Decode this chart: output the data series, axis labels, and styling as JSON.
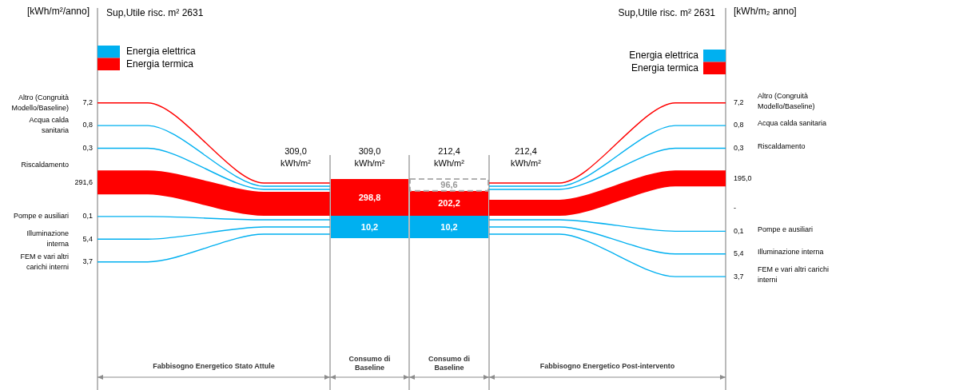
{
  "chart_data": [
    {
      "type": "other",
      "title": "Sup,Utile risc. m² 2631",
      "ylabel": "[kWh/m²/anno]",
      "xlabel": "Fabbisogno Energetico Stato Attule",
      "legend": "top left",
      "annotations": [
        "309,0 kWh/m²"
      ],
      "categories": [
        "Altro (Congruità Modello/Baseline)",
        "Acqua calda sanitaria",
        "Riscaldamento",
        "Pompe e ausiliari",
        "Illuminazione interna",
        "FEM e vari altri carichi interni"
      ],
      "series": [
        {
          "name": "Energia elettrica",
          "color": "#00b0f0",
          "values": [
            null,
            0.8,
            0.3,
            0.1,
            5.4,
            3.7
          ],
          "value_labels": [
            null,
            "0,8",
            "0,3",
            "0,1",
            "5,4",
            "3,7"
          ]
        },
        {
          "name": "Energia termica",
          "color": "#ff0000",
          "values": [
            7.2,
            null,
            291.6,
            null,
            null,
            null
          ],
          "value_labels": [
            "7,2",
            null,
            "291,6",
            null,
            null,
            null
          ]
        }
      ]
    },
    {
      "type": "other",
      "categories": [
        "Consumo di Baseline",
        "Consumo di Baseline"
      ],
      "totals": [
        "309,0 kWh/m²",
        "212,4 kWh/m²"
      ],
      "series": [
        {
          "color": "#00b0f0",
          "values": [
            10.2,
            10.2
          ],
          "value_labels": [
            "10,2",
            "10,2"
          ]
        },
        {
          "color": "#ff0000",
          "values": [
            298.8,
            202.2
          ],
          "value_labels": [
            "298,8",
            "202,2"
          ]
        },
        {
          "color": "#ffffff",
          "line_style": "dashed",
          "values": [
            null,
            96.6
          ],
          "value_labels": [
            null,
            "96,6"
          ]
        }
      ]
    },
    {
      "type": "other",
      "title": "Sup,Utile risc. m² 2631",
      "ylabel": "[kWh/m₂ anno]",
      "xlabel": "Fabbisogno Energetico Post-intervento",
      "legend": "top right",
      "annotations": [
        "212,4 kWh/m²"
      ],
      "categories": [
        "Altro (Congruità Modello/Baseline)",
        "Acqua calda sanitaria",
        "Riscaldamento",
        null,
        "Pompe e ausiliari",
        "Illuminazione interna",
        "FEM e vari altri carichi interni"
      ],
      "series": [
        {
          "name": "Energia elettrica",
          "color": "#00b0f0",
          "values": [
            null,
            0.8,
            0.3,
            null,
            0.1,
            5.4,
            3.7
          ],
          "value_labels": [
            null,
            "0,8",
            "0,3",
            "-",
            "0,1",
            "5,4",
            "3,7"
          ]
        },
        {
          "name": "Energia termica",
          "color": "#ff0000",
          "values": [
            7.2,
            null,
            195.0,
            null,
            null,
            null,
            null
          ],
          "value_labels": [
            "7,2",
            null,
            "195,0",
            null,
            null,
            null,
            null
          ]
        }
      ]
    }
  ]
}
